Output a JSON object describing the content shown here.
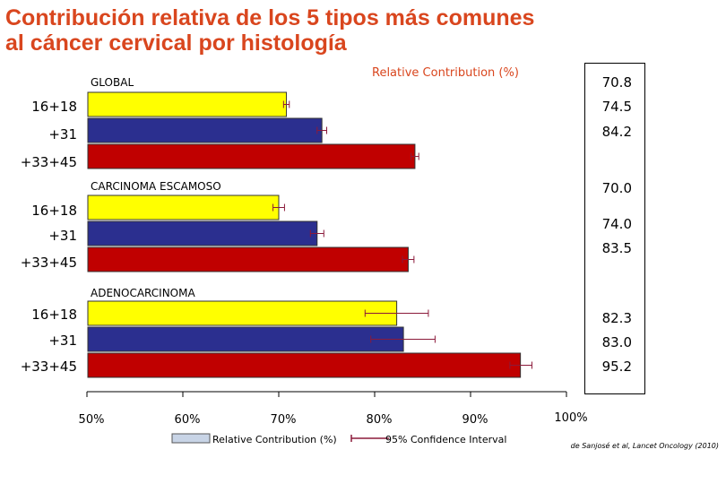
{
  "title_lines": [
    "Contribución relativa de los 5 tipos más comunes",
    "al cáncer cervical por histología"
  ],
  "top_label": "Relative Contribution (%)",
  "source": "de Sanjosé et al, Lancet Oncology (2010)",
  "colors": {
    "title": "#d9461e",
    "yellow": "#ffff00",
    "blue": "#2b2f8f",
    "red": "#c00000",
    "error": "#8b1a3a"
  },
  "chart_data": {
    "type": "bar",
    "orientation": "horizontal",
    "xlim": [
      50,
      100
    ],
    "xticks": [
      "50%",
      "60%",
      "70%",
      "80%",
      "90%",
      "100%"
    ],
    "groups": [
      {
        "name": "GLOBAL",
        "categories": [
          "16+18",
          "+31",
          "+33+45"
        ],
        "values": [
          70.8,
          74.5,
          84.2
        ],
        "value_labels": [
          "70.8",
          "74.5",
          "84.2"
        ],
        "ci_low": [
          70.5,
          74.0,
          83.8
        ],
        "ci_high": [
          71.1,
          75.0,
          84.6
        ]
      },
      {
        "name": "CARCINOMA ESCAMOSO",
        "categories": [
          "16+18",
          "+31",
          "+33+45"
        ],
        "values": [
          70.0,
          74.0,
          83.5
        ],
        "value_labels": [
          "70.0",
          "74.0",
          "83.5"
        ],
        "ci_low": [
          69.4,
          73.3,
          82.9
        ],
        "ci_high": [
          70.6,
          74.7,
          84.1
        ]
      },
      {
        "name": "ADENOCARCINOMA",
        "categories": [
          "16+18",
          "+31",
          "+33+45"
        ],
        "values": [
          82.3,
          83.0,
          95.2
        ],
        "value_labels": [
          "82.3",
          "83.0",
          "95.2"
        ],
        "ci_low": [
          79.0,
          79.6,
          94.1
        ],
        "ci_high": [
          85.6,
          86.3,
          96.4
        ]
      }
    ],
    "legend": [
      {
        "label": "Relative Contribution (%)",
        "kind": "bar"
      },
      {
        "label": "95% Confidence Interval",
        "kind": "errorbar"
      }
    ],
    "legend_position": "bottom"
  }
}
